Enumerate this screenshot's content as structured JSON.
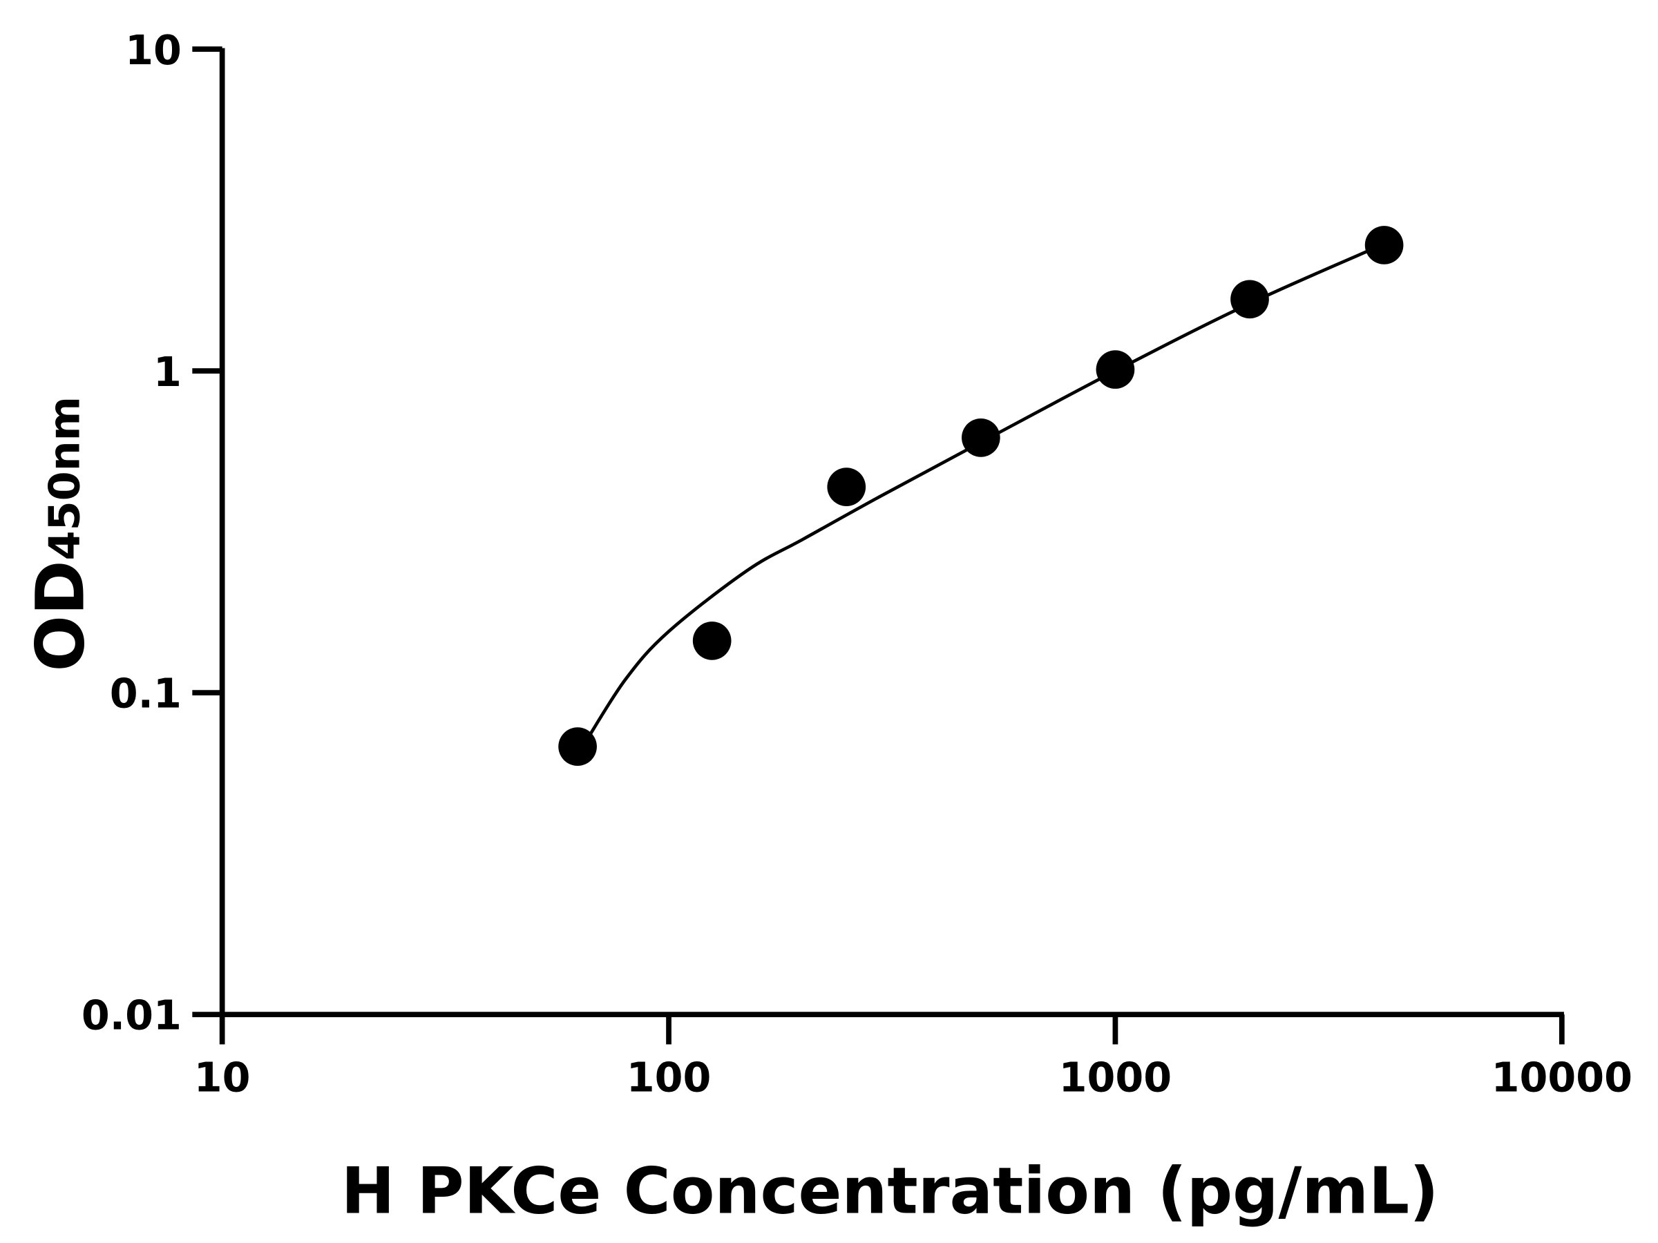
{
  "chart_data": {
    "type": "scatter",
    "title": "",
    "xlabel": "H PKCe Concentration (pg/mL)",
    "ylabel": "OD",
    "ylabel_subscript": "450nm",
    "xscale": "log",
    "yscale": "log",
    "xlim": [
      10,
      10000
    ],
    "ylim": [
      0.01,
      10
    ],
    "xticks": [
      "10",
      "100",
      "1000",
      "10000"
    ],
    "yticks": [
      "0.01",
      "0.1",
      "1",
      "10"
    ],
    "grid": false,
    "legend": "none",
    "series": [
      {
        "x": [
          62.5,
          125,
          250,
          500,
          1000,
          2000,
          4000
        ],
        "y": [
          0.068,
          0.145,
          0.436,
          0.62,
          1.01,
          1.67,
          2.46
        ],
        "marker": "circle",
        "color": "#000000"
      }
    ],
    "fit_curve": {
      "x": [
        65,
        80,
        100,
        150,
        200,
        300,
        500,
        1000,
        2000,
        4000
      ],
      "y": [
        0.07,
        0.11,
        0.155,
        0.24,
        0.3,
        0.41,
        0.6,
        1.0,
        1.62,
        2.48
      ],
      "color": "#000000"
    }
  }
}
